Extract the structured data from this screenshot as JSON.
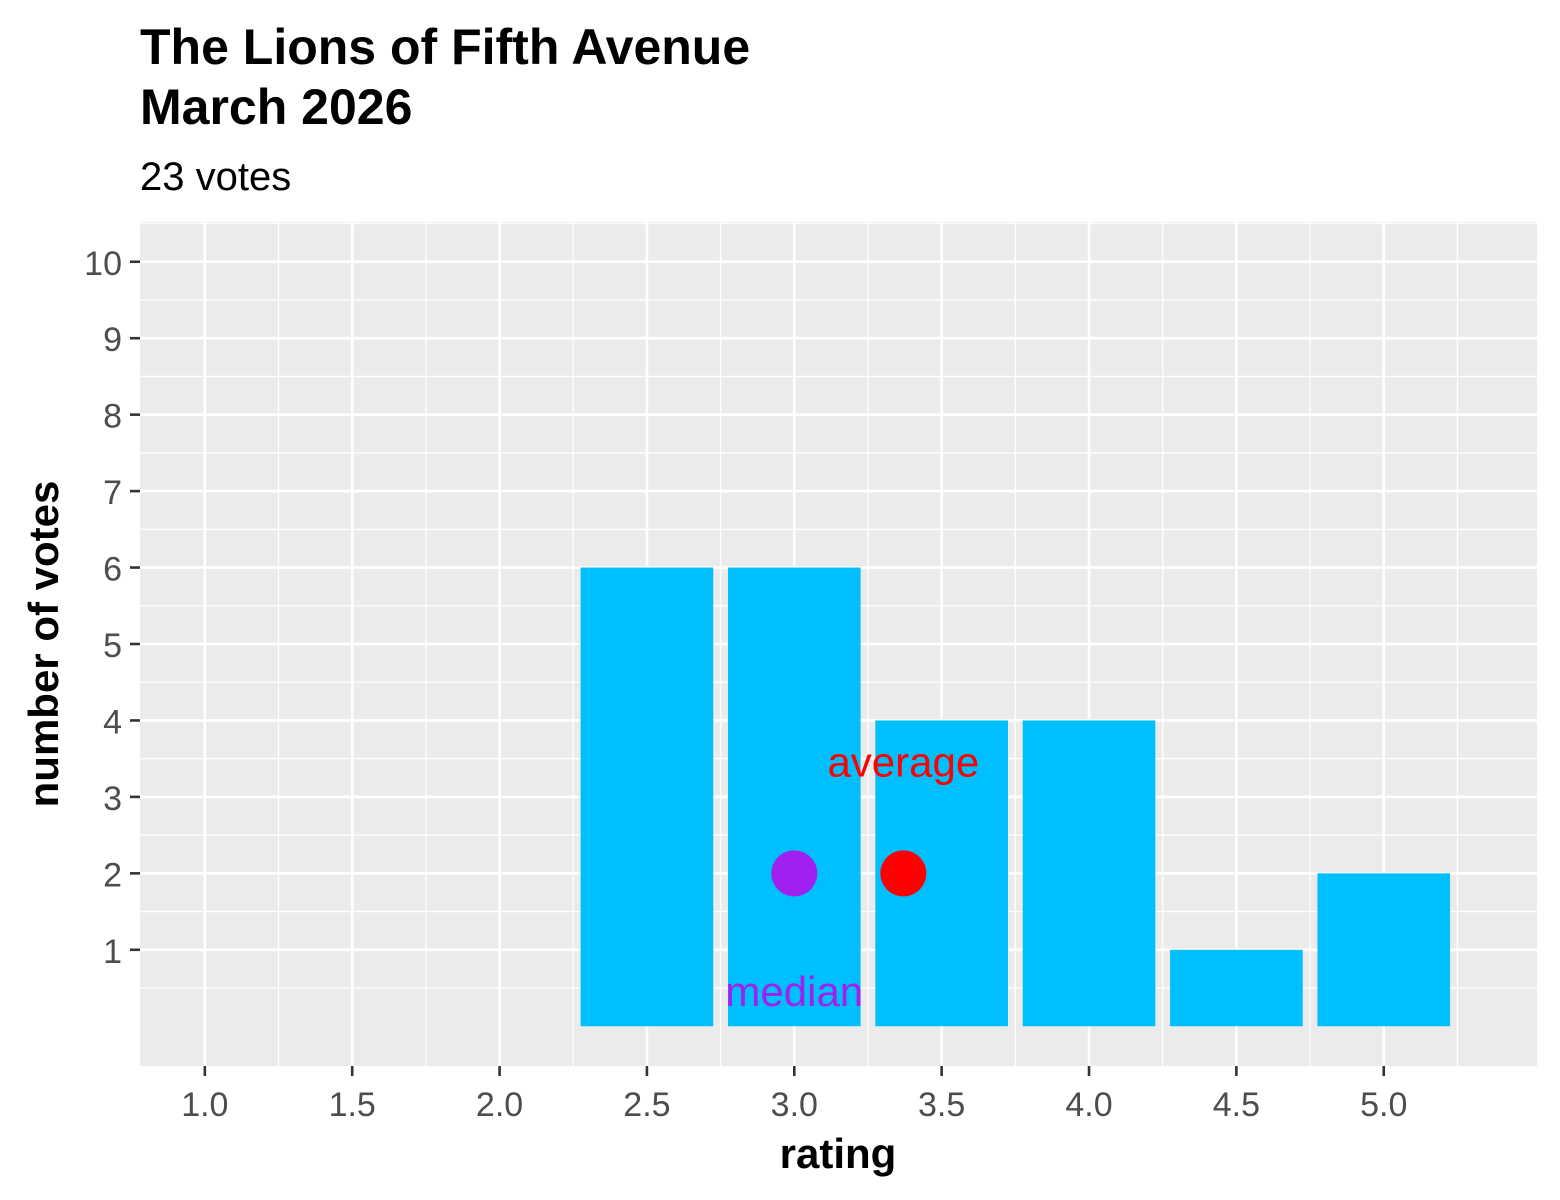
{
  "chart_data": {
    "type": "bar",
    "title_lines": [
      "The Lions of Fifth Avenue",
      "March 2026"
    ],
    "subtitle": "23 votes",
    "xlabel": "rating",
    "ylabel": "number of votes",
    "x": [
      2.5,
      3.0,
      3.5,
      4.0,
      4.5,
      5.0
    ],
    "values": [
      6,
      6,
      4,
      4,
      1,
      2
    ],
    "bar_width": 0.45,
    "xlim": [
      0.78,
      5.52
    ],
    "ylim": [
      -0.52,
      10.52
    ],
    "x_ticks": [
      1.0,
      1.5,
      2.0,
      2.5,
      3.0,
      3.5,
      4.0,
      4.5,
      5.0
    ],
    "x_tick_labels": [
      "1.0",
      "1.5",
      "2.0",
      "2.5",
      "3.0",
      "3.5",
      "4.0",
      "4.5",
      "5.0"
    ],
    "y_ticks": [
      1,
      2,
      3,
      4,
      5,
      6,
      7,
      8,
      9,
      10
    ],
    "y_tick_labels": [
      "1",
      "2",
      "3",
      "4",
      "5",
      "6",
      "7",
      "8",
      "9",
      "10"
    ],
    "grid": true,
    "markers": [
      {
        "name": "median",
        "label": "median",
        "x": 3.0,
        "y": 2,
        "label_y": 0.45,
        "color": "#a020f0"
      },
      {
        "name": "average",
        "label": "average",
        "x": 3.37,
        "y": 2,
        "label_y": 3.45,
        "color": "#ff0000"
      }
    ],
    "colors": {
      "bar": "#00bfff",
      "panel": "#ebebeb",
      "grid": "#ffffff",
      "text": "#000000",
      "tick_text": "#4d4d4d",
      "tick_mark": "#333333"
    }
  }
}
